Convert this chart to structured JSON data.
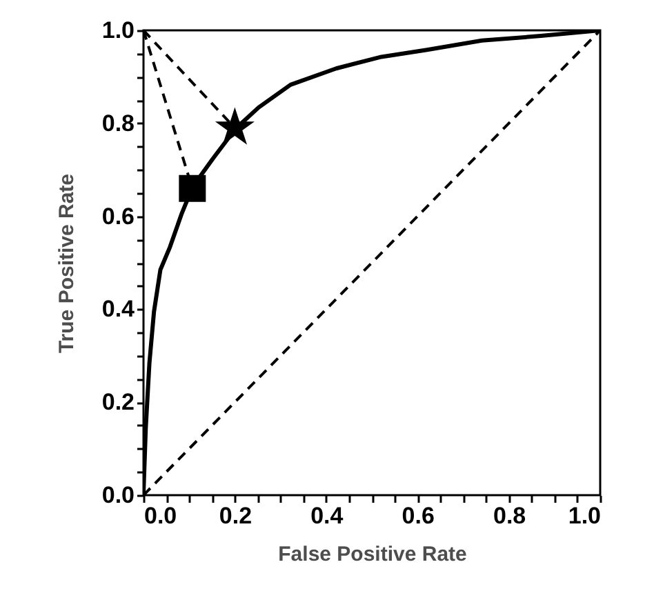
{
  "chart_data": {
    "type": "line",
    "xlabel": "False Positive Rate",
    "ylabel": "True Positive Rate",
    "xlim": [
      0,
      1
    ],
    "ylim": [
      0,
      1
    ],
    "xticks": [
      {
        "value": 0,
        "label": "0.0"
      },
      {
        "value": 0.05,
        "label": null
      },
      {
        "value": 0.1,
        "label": null
      },
      {
        "value": 0.15,
        "label": null
      },
      {
        "value": 0.2,
        "label": "0.2"
      },
      {
        "value": 0.25,
        "label": null
      },
      {
        "value": 0.3,
        "label": null
      },
      {
        "value": 0.35,
        "label": null
      },
      {
        "value": 0.4,
        "label": "0.4"
      },
      {
        "value": 0.45,
        "label": null
      },
      {
        "value": 0.5,
        "label": null
      },
      {
        "value": 0.55,
        "label": null
      },
      {
        "value": 0.6,
        "label": "0.6"
      },
      {
        "value": 0.65,
        "label": null
      },
      {
        "value": 0.7,
        "label": null
      },
      {
        "value": 0.75,
        "label": null
      },
      {
        "value": 0.8,
        "label": "0.8"
      },
      {
        "value": 0.85,
        "label": null
      },
      {
        "value": 0.9,
        "label": null
      },
      {
        "value": 0.95,
        "label": null
      },
      {
        "value": 1,
        "label": "1.0"
      }
    ],
    "yticks": [
      {
        "value": 0,
        "label": "0.0"
      },
      {
        "value": 0.05,
        "label": null
      },
      {
        "value": 0.1,
        "label": null
      },
      {
        "value": 0.15,
        "label": null
      },
      {
        "value": 0.2,
        "label": "0.2"
      },
      {
        "value": 0.25,
        "label": null
      },
      {
        "value": 0.3,
        "label": null
      },
      {
        "value": 0.35,
        "label": null
      },
      {
        "value": 0.4,
        "label": "0.4"
      },
      {
        "value": 0.45,
        "label": null
      },
      {
        "value": 0.5,
        "label": null
      },
      {
        "value": 0.55,
        "label": null
      },
      {
        "value": 0.6,
        "label": "0.6"
      },
      {
        "value": 0.65,
        "label": null
      },
      {
        "value": 0.7,
        "label": null
      },
      {
        "value": 0.75,
        "label": null
      },
      {
        "value": 0.8,
        "label": "0.8"
      },
      {
        "value": 0.85,
        "label": null
      },
      {
        "value": 0.9,
        "label": null
      },
      {
        "value": 0.95,
        "label": null
      },
      {
        "value": 1,
        "label": "1.0"
      }
    ],
    "grid": false,
    "series": [
      {
        "color": "#000000",
        "line_style": "solid",
        "marker": "none",
        "x": [
          0,
          0.005,
          0.013,
          0.023,
          0.037,
          0.058,
          0.083,
          0.108,
          0.152,
          0.202,
          0.252,
          0.322,
          0.422,
          0.521,
          0.621,
          0.741,
          0.87,
          1
        ],
        "values": [
          0.005,
          0.145,
          0.285,
          0.395,
          0.485,
          0.534,
          0.604,
          0.664,
          0.724,
          0.789,
          0.834,
          0.883,
          0.918,
          0.943,
          0.958,
          0.978,
          0.988,
          1
        ]
      },
      {
        "color": "#000000",
        "line_style": "dashed",
        "marker": "none",
        "x": [
          0,
          1
        ],
        "values": [
          0,
          1
        ]
      },
      {
        "color": "#000000",
        "line_style": "dashed",
        "marker": "none",
        "x": [
          0,
          0.107
        ],
        "values": [
          1,
          0.66
        ]
      },
      {
        "color": "#000000",
        "line_style": "dashed",
        "marker": "none",
        "x": [
          0,
          0.2
        ],
        "values": [
          1,
          0.79
        ]
      },
      {
        "type": "scatter",
        "color": "#000000",
        "marker": "square",
        "x": [
          0.107
        ],
        "values": [
          0.66
        ]
      },
      {
        "type": "scatter",
        "color": "#000000",
        "marker": "star",
        "x": [
          0.2
        ],
        "values": [
          0.79
        ]
      }
    ]
  }
}
